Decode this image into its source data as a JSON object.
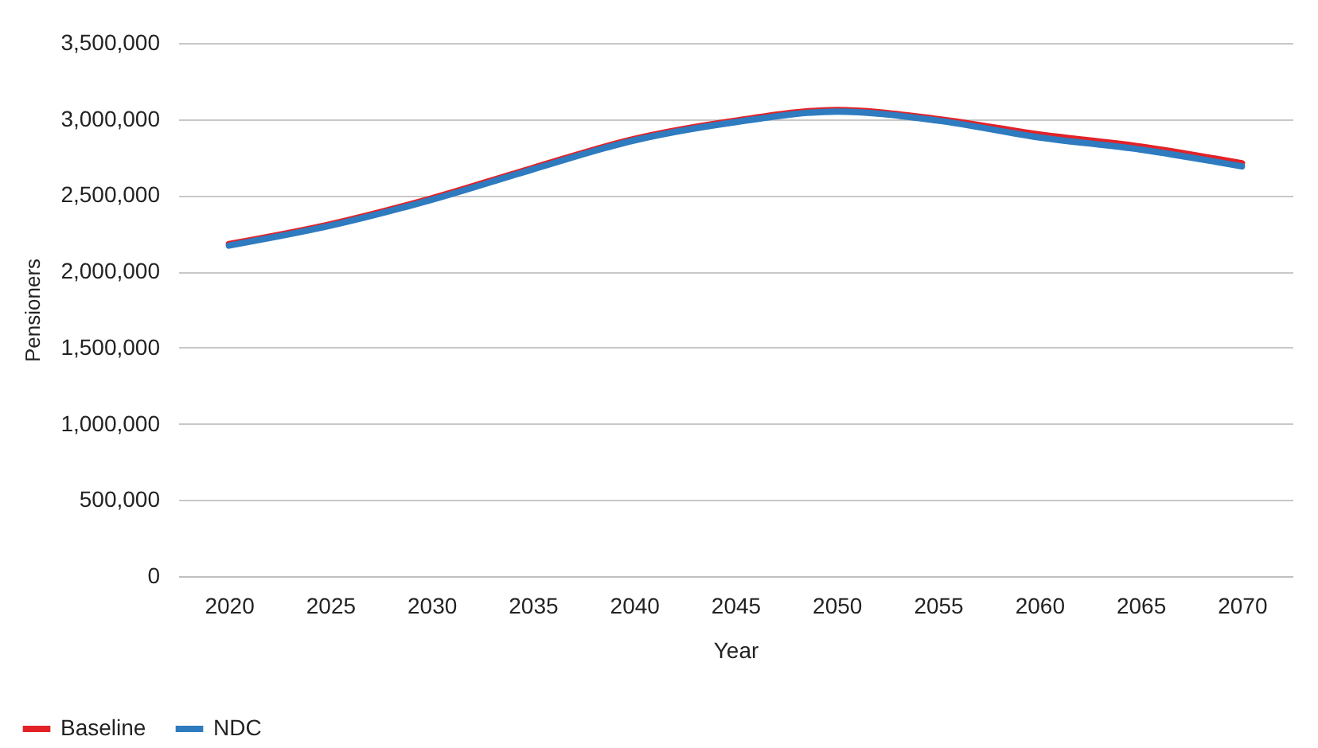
{
  "chart_data": {
    "type": "line",
    "xlabel": "Year",
    "ylabel": "Pensioners",
    "categories": [
      "2020",
      "2025",
      "2030",
      "2035",
      "2040",
      "2045",
      "2050",
      "2055",
      "2060",
      "2065",
      "2070"
    ],
    "series": [
      {
        "name": "Baseline",
        "color": "#e32228",
        "values": [
          2180000,
          2310000,
          2480000,
          2680000,
          2870000,
          2990000,
          3060000,
          3000000,
          2900000,
          2820000,
          2710000
        ]
      },
      {
        "name": "NDC",
        "color": "#2f7bbf",
        "values": [
          2170000,
          2300000,
          2470000,
          2670000,
          2860000,
          2980000,
          3050000,
          2990000,
          2880000,
          2800000,
          2690000
        ]
      }
    ],
    "ylim": [
      0,
      3500000
    ],
    "yticks": [
      0,
      {
        "value": 500000,
        "label": "500,000"
      },
      {
        "value": 1000000,
        "label": "1,000,000"
      },
      {
        "value": 1500000,
        "label": "1,500,000"
      },
      {
        "value": 2000000,
        "label": "2,000,000"
      },
      {
        "value": 2500000,
        "label": "2,500,000"
      },
      {
        "value": 3000000,
        "label": "3,000,000"
      },
      {
        "value": 3500000,
        "label": "3,500,000"
      }
    ],
    "grid": "y",
    "legend": "bottom left",
    "marker": "none",
    "line_style": "solid"
  }
}
